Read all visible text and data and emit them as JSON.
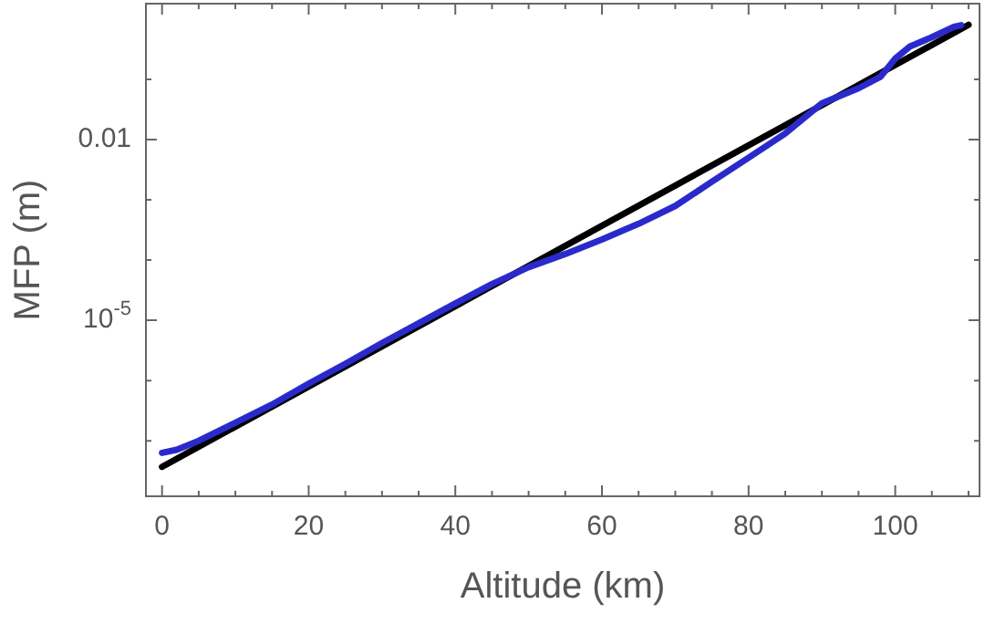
{
  "chart_data": {
    "type": "line",
    "xlabel": "Altitude (km)",
    "ylabel": "MFP (m)",
    "log": "y",
    "grid": false,
    "legend": false,
    "marker": "none",
    "line_style": "solid",
    "xlim": [
      -2.2,
      111.5
    ],
    "ylim": [
      1.2e-08,
      1.8
    ],
    "xticks": [
      0,
      {
        "value": 5,
        "label": null
      },
      {
        "value": 10,
        "label": null
      },
      {
        "value": 15,
        "label": null
      },
      20,
      {
        "value": 25,
        "label": null
      },
      {
        "value": 30,
        "label": null
      },
      {
        "value": 35,
        "label": null
      },
      40,
      {
        "value": 45,
        "label": null
      },
      {
        "value": 50,
        "label": null
      },
      {
        "value": 55,
        "label": null
      },
      60,
      {
        "value": 65,
        "label": null
      },
      {
        "value": 70,
        "label": null
      },
      {
        "value": 75,
        "label": null
      },
      80,
      {
        "value": 85,
        "label": null
      },
      {
        "value": 90,
        "label": null
      },
      {
        "value": 95,
        "label": null
      },
      100,
      {
        "value": 105,
        "label": null
      },
      {
        "value": 110,
        "label": null
      }
    ],
    "yticks": [
      {
        "value": 1e-07,
        "label": null
      },
      {
        "value": 1e-06,
        "label": null
      },
      {
        "value": 1e-05,
        "label": "10$^{-5}$"
      },
      {
        "value": 0.0001,
        "label": null
      },
      {
        "value": 0.001,
        "label": null
      },
      0.01,
      {
        "value": 0.1,
        "label": null
      }
    ],
    "series": [
      {
        "color": "#2a2acc",
        "x": [
          0,
          2,
          5,
          10,
          15,
          20,
          25,
          30,
          35,
          40,
          45,
          50,
          55,
          60,
          65,
          70,
          75,
          80,
          85,
          90,
          95,
          98,
          100,
          102,
          105,
          108,
          109
        ],
        "values": [
          6.3e-08,
          7.1e-08,
          1e-07,
          2e-07,
          4e-07,
          8.9e-07,
          1.9e-06,
          4.2e-06,
          8.9e-06,
          1.9e-05,
          4e-05,
          7.6e-05,
          0.000126,
          0.00022,
          0.0004,
          0.00079,
          0.002,
          0.005,
          0.0126,
          0.04,
          0.071,
          0.11,
          0.22,
          0.35,
          0.5,
          0.74,
          0.79
        ]
      },
      {
        "color": "#000000",
        "x": [
          0,
          110
        ],
        "values": [
          3.7e-08,
          0.8
        ]
      }
    ]
  }
}
